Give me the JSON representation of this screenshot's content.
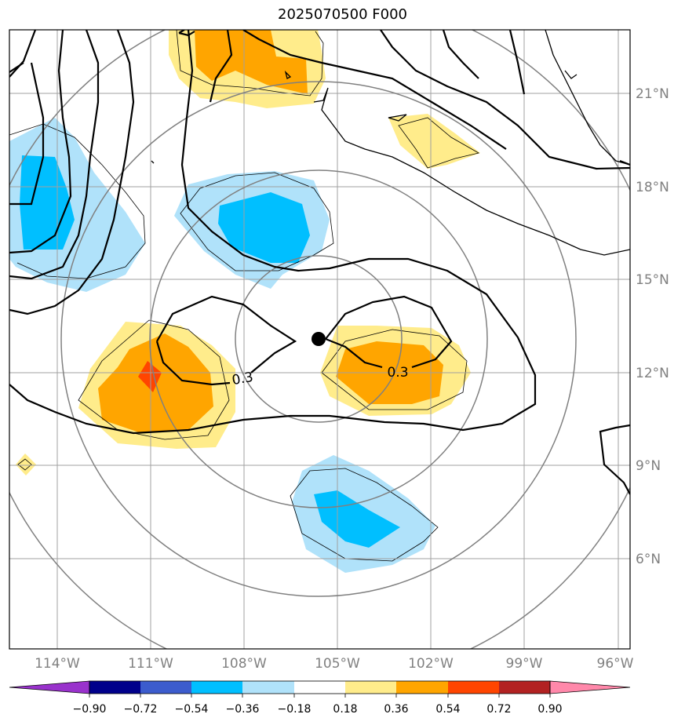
{
  "title": "2025070500 F000",
  "map": {
    "lon_ticks": [
      "114°W",
      "111°W",
      "108°W",
      "105°W",
      "102°W",
      "99°W",
      "96°W"
    ],
    "lat_ticks": [
      "21°N",
      "18°N",
      "15°N",
      "12°N",
      "9°N",
      "6°N"
    ],
    "contour_labels": [
      "0.3",
      "0.3"
    ],
    "center_marker": "storm-center-dot",
    "line_color": "#000000",
    "grid_color": "#a0a0a0",
    "ring_color": "#808080"
  },
  "colorbar": {
    "tick_labels": [
      "−0.90",
      "−0.72",
      "−0.54",
      "−0.36",
      "−0.18",
      "0.18",
      "0.36",
      "0.54",
      "0.72",
      "0.90"
    ],
    "colors": [
      "#9932cc",
      "#00008b",
      "#3c5ccd",
      "#00bfff",
      "#b0e2fa",
      "#ffffff",
      "#ffec8b",
      "#ffa500",
      "#ff4500",
      "#b22222",
      "#ff88aa"
    ]
  }
}
